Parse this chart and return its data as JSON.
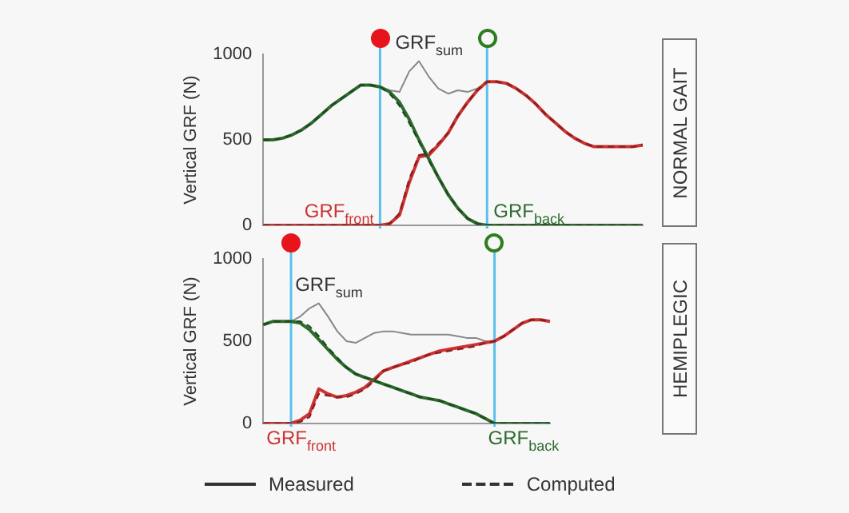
{
  "chart_data": [
    {
      "type": "line",
      "annotations": [
        "NORMAL GAIT"
      ],
      "ylabel": "Vertical GRF (N)",
      "categories": [
        null,
        null,
        null,
        null,
        null,
        null,
        null,
        null,
        null,
        null,
        null,
        null,
        null,
        null,
        null,
        null,
        null,
        null,
        null,
        null,
        null,
        null,
        null,
        null,
        null,
        null,
        null,
        null,
        null,
        null,
        null,
        null,
        null,
        null,
        null,
        null,
        null,
        null,
        null,
        null
      ],
      "series": [
        {
          "name": "GRF$_{back}$",
          "color": "#2e6b2e",
          "line_style": "solid",
          "values": [
            500,
            500,
            510,
            530,
            560,
            600,
            650,
            700,
            740,
            780,
            820,
            820,
            810,
            780,
            720,
            620,
            500,
            390,
            280,
            180,
            100,
            40,
            10,
            0,
            0,
            0,
            0,
            0,
            0,
            0,
            0,
            0,
            0,
            0,
            0,
            0,
            0,
            0,
            0,
            0
          ]
        },
        {
          "name": "GRF$_{front}$",
          "color": "#cc3333",
          "line_style": "solid",
          "values": [
            0,
            0,
            0,
            0,
            0,
            0,
            0,
            0,
            0,
            0,
            0,
            0,
            0,
            10,
            60,
            250,
            400,
            410,
            470,
            540,
            640,
            720,
            790,
            840,
            840,
            830,
            800,
            760,
            710,
            650,
            600,
            550,
            510,
            480,
            460,
            460,
            460,
            460,
            460,
            470
          ]
        },
        {
          "name": "GRF$_{sum}$",
          "color": "#888888",
          "line_style": "solid",
          "values": [
            null,
            null,
            null,
            null,
            null,
            null,
            null,
            null,
            null,
            null,
            null,
            null,
            810,
            790,
            780,
            900,
            960,
            870,
            800,
            770,
            790,
            780,
            800,
            840,
            null,
            null,
            null,
            null,
            null,
            null,
            null,
            null,
            null,
            null,
            null,
            null,
            null,
            null,
            null,
            null
          ]
        },
        {
          "color": "#1e4a1e",
          "line_style": "dashed",
          "values": [
            500,
            500,
            510,
            530,
            560,
            600,
            650,
            700,
            740,
            780,
            820,
            820,
            810,
            770,
            700,
            600,
            490,
            380,
            280,
            180,
            100,
            40,
            10,
            0,
            0,
            0,
            0,
            0,
            0,
            0,
            0,
            0,
            0,
            0,
            0,
            0,
            0,
            0,
            0,
            0
          ]
        },
        {
          "color": "#8b1e1e",
          "line_style": "dashed",
          "values": [
            0,
            0,
            0,
            0,
            0,
            0,
            0,
            0,
            0,
            0,
            0,
            0,
            0,
            10,
            70,
            270,
            410,
            420,
            480,
            540,
            640,
            720,
            790,
            840,
            840,
            830,
            800,
            760,
            710,
            650,
            600,
            550,
            510,
            480,
            460,
            460,
            460,
            460,
            460,
            470
          ]
        }
      ],
      "ylim": [
        0,
        1000
      ],
      "yticks": [
        0,
        500,
        1000
      ],
      "tick_labels": "y",
      "marker": "none"
    },
    {
      "type": "line",
      "ylabel": "Vertical GRF (N)",
      "categories": [
        null,
        null,
        null,
        null,
        null,
        null,
        null,
        null,
        null,
        null,
        null,
        null,
        null,
        null,
        null,
        null,
        null,
        null,
        null,
        null,
        null,
        null,
        null,
        null,
        null,
        null,
        null,
        null,
        null,
        null,
        null,
        null
      ],
      "series": [
        {
          "name": "GRF$_{back}$",
          "color": "#2e6b2e",
          "line_style": "solid",
          "values": [
            600,
            620,
            620,
            620,
            610,
            570,
            510,
            450,
            390,
            340,
            300,
            280,
            260,
            240,
            220,
            200,
            180,
            160,
            150,
            140,
            120,
            100,
            80,
            60,
            30,
            0,
            0,
            0,
            0,
            0,
            0,
            0
          ]
        },
        {
          "name": "GRF$_{front}$",
          "color": "#cc3333",
          "line_style": "solid",
          "values": [
            0,
            0,
            0,
            0,
            20,
            60,
            210,
            180,
            160,
            170,
            190,
            220,
            270,
            320,
            340,
            360,
            380,
            400,
            420,
            440,
            450,
            460,
            470,
            480,
            490,
            500,
            530,
            570,
            610,
            630,
            630,
            620
          ]
        },
        {
          "name": "GRF$_{sum}$",
          "color": "#888888",
          "line_style": "solid",
          "values": [
            null,
            null,
            null,
            620,
            650,
            700,
            730,
            650,
            560,
            500,
            490,
            520,
            550,
            560,
            560,
            550,
            540,
            540,
            540,
            540,
            540,
            530,
            520,
            520,
            500,
            500,
            null,
            null,
            null,
            null,
            null,
            null
          ]
        },
        {
          "color": "#1e4a1e",
          "line_style": "dashed",
          "values": [
            600,
            620,
            620,
            620,
            620,
            590,
            530,
            460,
            400,
            340,
            300,
            280,
            260,
            240,
            220,
            200,
            180,
            160,
            150,
            140,
            120,
            100,
            80,
            60,
            30,
            0,
            0,
            0,
            0,
            0,
            0,
            0
          ]
        },
        {
          "color": "#8b1e1e",
          "line_style": "dashed",
          "values": [
            0,
            0,
            0,
            0,
            10,
            40,
            180,
            170,
            160,
            160,
            180,
            210,
            260,
            320,
            340,
            360,
            370,
            400,
            420,
            430,
            440,
            450,
            460,
            470,
            490,
            500,
            530,
            570,
            610,
            630,
            630,
            620
          ]
        }
      ],
      "ylim": [
        0,
        1000
      ],
      "yticks": [
        0,
        500,
        1000
      ],
      "tick_labels": "y",
      "marker": "none",
      "annotations": [
        "HEMIPLEGIC",
        "Measured",
        "Computed"
      ]
    }
  ]
}
